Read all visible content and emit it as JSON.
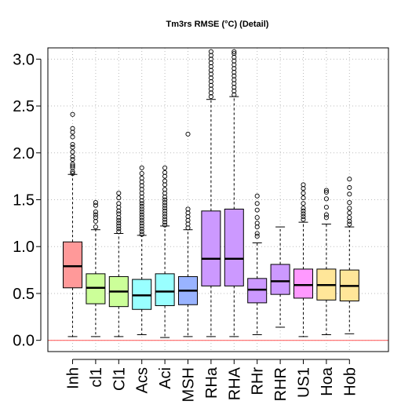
{
  "chart_data": {
    "type": "box",
    "title": "Tm3rs RMSE (°C) (Detail)",
    "xlabel": "",
    "ylabel": "",
    "ylim": [
      -0.12,
      3.12
    ],
    "yticks": [
      "0.0",
      "0.5",
      "1.0",
      "1.5",
      "2.0",
      "2.5",
      "3.0"
    ],
    "grid": true,
    "reference_line": {
      "y": 0,
      "color": "#ff6666"
    },
    "categories": [
      "Inh",
      "cl1",
      "Cl1",
      "Acs",
      "Aci",
      "MSH",
      "RHa",
      "RHA",
      "RHr",
      "RHR",
      "US1",
      "Hoa",
      "Hob"
    ],
    "series": [
      {
        "category": "Inh",
        "whisker_low": 0.04,
        "q1": 0.56,
        "median": 0.79,
        "q3": 1.05,
        "whisker_high": 1.77,
        "color": "#ff9999",
        "outliers": [
          1.78,
          1.8,
          1.84,
          1.86,
          1.88,
          1.93,
          1.96,
          2.01,
          2.06,
          2.09,
          2.17,
          2.22,
          2.26,
          2.41
        ]
      },
      {
        "category": "cl1",
        "whisker_low": 0.04,
        "q1": 0.39,
        "median": 0.56,
        "q3": 0.71,
        "whisker_high": 1.18,
        "color": "#ccff99",
        "outliers": [
          1.21,
          1.27,
          1.31,
          1.34,
          1.37,
          1.44,
          1.47
        ]
      },
      {
        "category": "Cl1",
        "whisker_low": 0.04,
        "q1": 0.36,
        "median": 0.52,
        "q3": 0.68,
        "whisker_high": 1.14,
        "color": "#ccff99",
        "outliers": [
          1.16,
          1.19,
          1.22,
          1.25,
          1.28,
          1.31,
          1.35,
          1.38,
          1.42,
          1.46,
          1.52,
          1.57
        ]
      },
      {
        "category": "Acs",
        "whisker_low": 0.06,
        "q1": 0.33,
        "median": 0.48,
        "q3": 0.65,
        "whisker_high": 1.12,
        "color": "#99ffff",
        "outliers": [
          1.13,
          1.16,
          1.19,
          1.22,
          1.25,
          1.28,
          1.31,
          1.34,
          1.37,
          1.4,
          1.43,
          1.46,
          1.49,
          1.53,
          1.57,
          1.61,
          1.65,
          1.69,
          1.73,
          1.78,
          1.84
        ]
      },
      {
        "category": "Aci",
        "whisker_low": 0.03,
        "q1": 0.37,
        "median": 0.52,
        "q3": 0.71,
        "whisker_high": 1.22,
        "color": "#99ffff",
        "outliers": [
          1.23,
          1.26,
          1.29,
          1.32,
          1.35,
          1.38,
          1.41,
          1.44,
          1.47,
          1.5,
          1.53,
          1.57,
          1.61,
          1.66,
          1.7,
          1.75,
          1.79,
          1.84
        ]
      },
      {
        "category": "MSH",
        "whisker_low": 0.04,
        "q1": 0.38,
        "median": 0.53,
        "q3": 0.68,
        "whisker_high": 1.18,
        "color": "#99b3ff",
        "outliers": [
          1.2,
          1.24,
          1.28,
          1.32,
          1.36,
          1.4,
          2.2
        ]
      },
      {
        "category": "RHa",
        "whisker_low": 0.04,
        "q1": 0.58,
        "median": 0.87,
        "q3": 1.38,
        "whisker_high": 2.57,
        "color": "#cc99ff",
        "outliers": [
          2.6,
          2.64,
          2.68,
          2.72,
          2.76,
          2.8,
          2.84,
          2.88,
          2.92,
          2.96,
          3.0,
          3.04,
          3.08
        ]
      },
      {
        "category": "RHA",
        "whisker_low": 0.04,
        "q1": 0.58,
        "median": 0.87,
        "q3": 1.4,
        "whisker_high": 2.6,
        "color": "#cc99ff",
        "outliers": [
          2.62,
          2.66,
          2.7,
          2.74,
          2.78,
          2.82,
          2.86,
          2.9,
          2.94,
          2.98,
          3.02,
          3.06,
          3.08
        ]
      },
      {
        "category": "RHr",
        "whisker_low": 0.06,
        "q1": 0.4,
        "median": 0.54,
        "q3": 0.66,
        "whisker_high": 1.04,
        "color": "#cc99ff",
        "outliers": [
          1.11,
          1.14,
          1.21,
          1.25,
          1.31,
          1.39,
          1.46,
          1.54
        ]
      },
      {
        "category": "RHR",
        "whisker_low": 0.14,
        "q1": 0.49,
        "median": 0.63,
        "q3": 0.81,
        "whisker_high": 1.21,
        "color": "#cc99ff",
        "outliers": []
      },
      {
        "category": "US1",
        "whisker_low": 0.04,
        "q1": 0.45,
        "median": 0.59,
        "q3": 0.76,
        "whisker_high": 1.26,
        "color": "#ff99ff",
        "outliers": [
          1.29,
          1.32,
          1.35,
          1.38,
          1.41,
          1.46,
          1.52,
          1.57,
          1.62,
          1.66
        ]
      },
      {
        "category": "Hoa",
        "whisker_low": 0.06,
        "q1": 0.43,
        "median": 0.59,
        "q3": 0.76,
        "whisker_high": 1.24,
        "color": "#ffe699",
        "outliers": [
          1.31,
          1.34,
          1.42,
          1.51,
          1.58,
          1.6
        ]
      },
      {
        "category": "Hob",
        "whisker_low": 0.07,
        "q1": 0.42,
        "median": 0.58,
        "q3": 0.75,
        "whisker_high": 1.21,
        "color": "#ffe699",
        "outliers": [
          1.24,
          1.27,
          1.31,
          1.36,
          1.41,
          1.47,
          1.56,
          1.63,
          1.72
        ]
      }
    ]
  }
}
